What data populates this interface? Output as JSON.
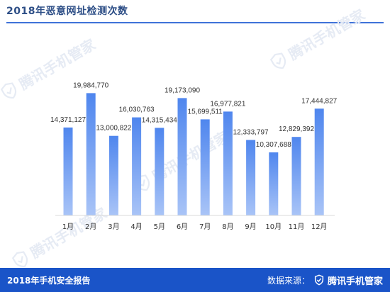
{
  "header": {
    "title": "2018年恶意网址检测次数"
  },
  "watermark": {
    "text": "腾讯手机管家",
    "icon": "shield-check-icon"
  },
  "footer": {
    "report_title": "2018年手机安全报告",
    "source_label": "数据来源：",
    "brand_name": "腾讯手机管家",
    "brand_icon": "shield-check-icon"
  },
  "colors": {
    "bar_top": "#4f86ee",
    "bar_bottom": "#a9c4f7",
    "title": "#2d4e86",
    "rule": "#3f72d9",
    "footer_bg": "#1a54c8"
  },
  "chart_data": {
    "type": "bar",
    "title": "2018年恶意网址检测次数",
    "xlabel": "",
    "ylabel": "",
    "grid": false,
    "legend": "none",
    "categories": [
      "1月",
      "2月",
      "3月",
      "4月",
      "5月",
      "6月",
      "7月",
      "8月",
      "9月",
      "10月",
      "11月",
      "12月"
    ],
    "values": [
      14371127,
      19984770,
      13000822,
      16030763,
      14315434,
      19173090,
      15699511,
      16977821,
      12333797,
      10307688,
      12829392,
      17444827
    ],
    "value_labels": [
      "14,371,127",
      "19,984,770",
      "13,000,822",
      "16,030,763",
      "14,315,434",
      "19,173,090",
      "15,699,511",
      "16,977,821",
      "12,333,797",
      "10,307,688",
      "12,829,392",
      "17,444,827"
    ],
    "ylim": [
      0,
      22000000
    ]
  }
}
